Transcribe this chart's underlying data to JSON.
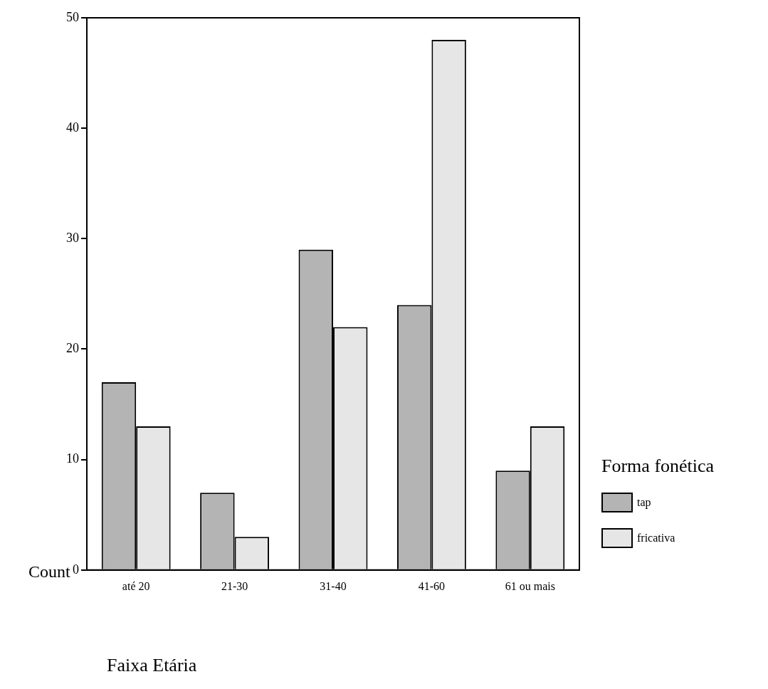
{
  "chart_data": {
    "type": "bar",
    "xlabel": "Faixa Etária",
    "ylabel": "Count",
    "legend_title": "Forma fonética",
    "legend": "right",
    "categories": [
      "até 20",
      "21-30",
      "31-40",
      "41-60",
      "61 ou mais"
    ],
    "series": [
      {
        "name": "tap",
        "color": "#b4b4b4",
        "values": [
          17,
          7,
          29,
          24,
          9
        ]
      },
      {
        "name": "fricativa",
        "color": "#e6e6e6",
        "values": [
          13,
          3,
          22,
          48,
          13
        ]
      }
    ],
    "ylim": [
      0,
      50
    ],
    "yticks": [
      0,
      10,
      20,
      30,
      40,
      50
    ],
    "grid": false
  }
}
